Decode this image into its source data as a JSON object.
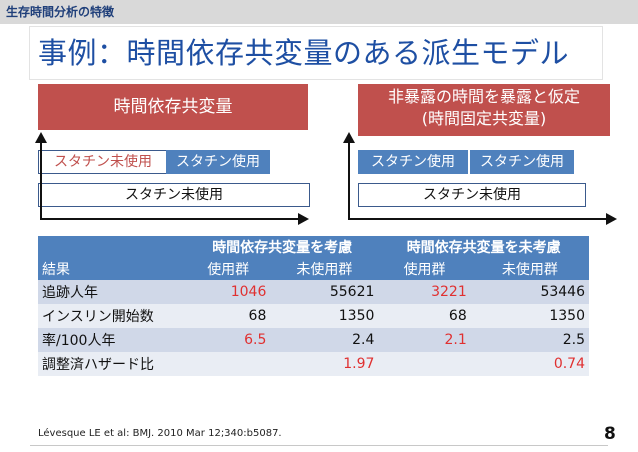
{
  "header": {
    "section_label": "生存時間分析の特徴"
  },
  "slide": {
    "title": "事例：時間依存共変量のある派生モデル",
    "page_number": "8"
  },
  "left_model": {
    "top_label": "時間依存共変量",
    "seg_untreated": "スタチン未使用",
    "seg_treated": "スタチン使用",
    "bottom_label": "スタチン未使用"
  },
  "right_model": {
    "top_label_line1": "非暴露の時間を暴露と仮定",
    "top_label_line2": "(時間固定共変量)",
    "seg_treated": "スタチン使用",
    "seg_treated2": "スタチン使用",
    "bottom_label": "スタチン未使用"
  },
  "table": {
    "group1": "時間依存共変量を考慮",
    "group2": "時間依存共変量を未考慮",
    "col_result": "結果",
    "col_use": "使用群",
    "col_nonuse": "未使用群",
    "col_use2": "使用群",
    "col_nonuse2": "未使用群",
    "rows": [
      {
        "label": "追跡人年",
        "v1": "1046",
        "v2": "55621",
        "v3": "3221",
        "v4": "53446"
      },
      {
        "label": "インスリン開始数",
        "v1": "68",
        "v2": "1350",
        "v3": "68",
        "v4": "1350"
      },
      {
        "label": "率/100人年",
        "v1": "6.5",
        "v2": "2.4",
        "v3": "2.1",
        "v4": "2.5"
      },
      {
        "label": "調整済ハザード比",
        "v1": "",
        "v2": "1.97",
        "v3": "",
        "v4": "0.74"
      }
    ]
  },
  "citation": "Lévesque LE et al: BMJ. 2010 Mar 12;340:b5087.",
  "colors": {
    "accent_red": "#c0504d",
    "accent_blue": "#4f81bd",
    "title_blue": "#1e4fa3",
    "value_red": "#e03030"
  }
}
